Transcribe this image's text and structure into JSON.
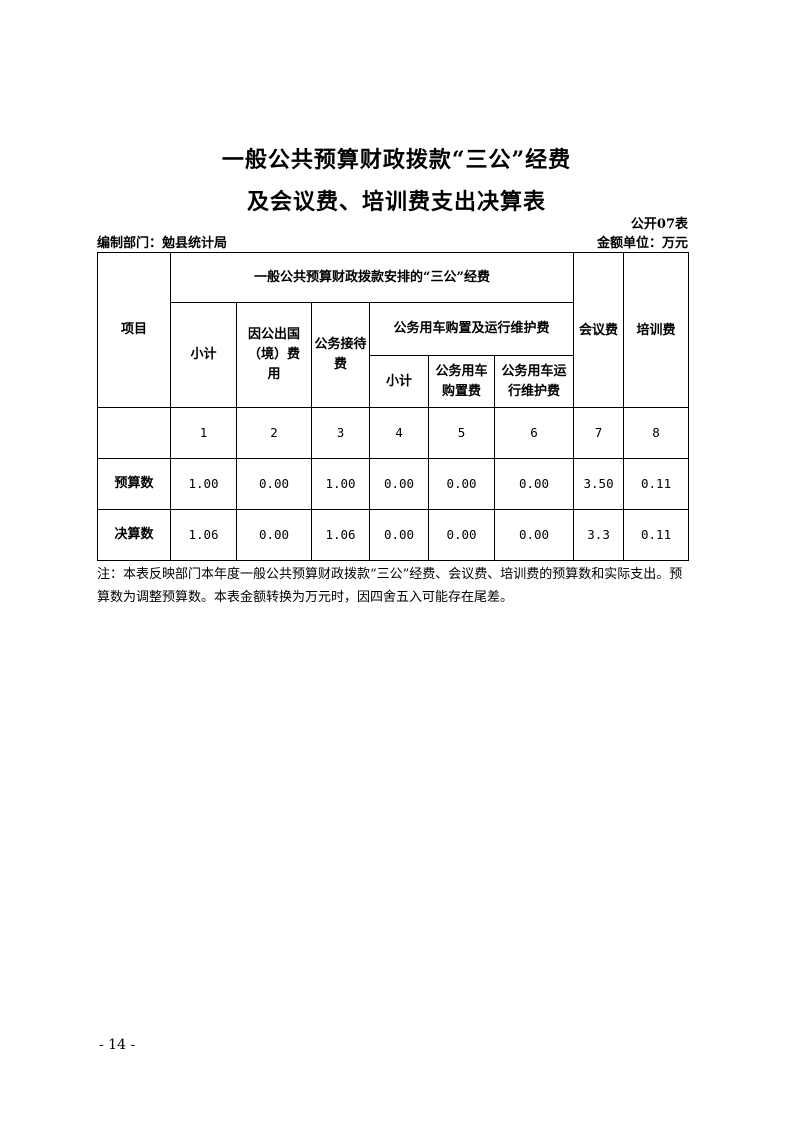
{
  "title_line1": "一般公共预算财政拨款“三公”经费",
  "title_line2": "及会议费、培训费支出决算表",
  "table_code": "公开07表",
  "department": "编制部门：勉县统计局",
  "unit": "金额单位：万元",
  "headers": {
    "item": "项目",
    "group": "一般公共预算财政拨款安排的“三公”经费",
    "subtotal": "小计",
    "abroad": "因公出国（境）费用",
    "reception": "公务接待费",
    "vehicle_group": "公务用车购置及运行维护费",
    "vehicle_subtotal": "小计",
    "vehicle_purchase": "公务用车购置费",
    "vehicle_maintenance": "公务用车运行维护费",
    "meeting": "会议费",
    "training": "培训费"
  },
  "column_numbers": [
    "1",
    "2",
    "3",
    "4",
    "5",
    "6",
    "7",
    "8"
  ],
  "rows": [
    {
      "label": "预算数",
      "values": [
        "1.00",
        "0.00",
        "1.00",
        "0.00",
        "0.00",
        "0.00",
        "3.50",
        "0.11"
      ]
    },
    {
      "label": "决算数",
      "values": [
        "1.06",
        "0.00",
        "1.06",
        "0.00",
        "0.00",
        "0.00",
        "3.3",
        "0.11"
      ]
    }
  ],
  "note": "注：本表反映部门本年度一般公共预算财政拨款“三公”经费、会议费、培训费的预算数和实际支出。预算数为调整预算数。本表金额转换为万元时，因四舍五入可能存在尾差。",
  "page_number": "- 14 -"
}
